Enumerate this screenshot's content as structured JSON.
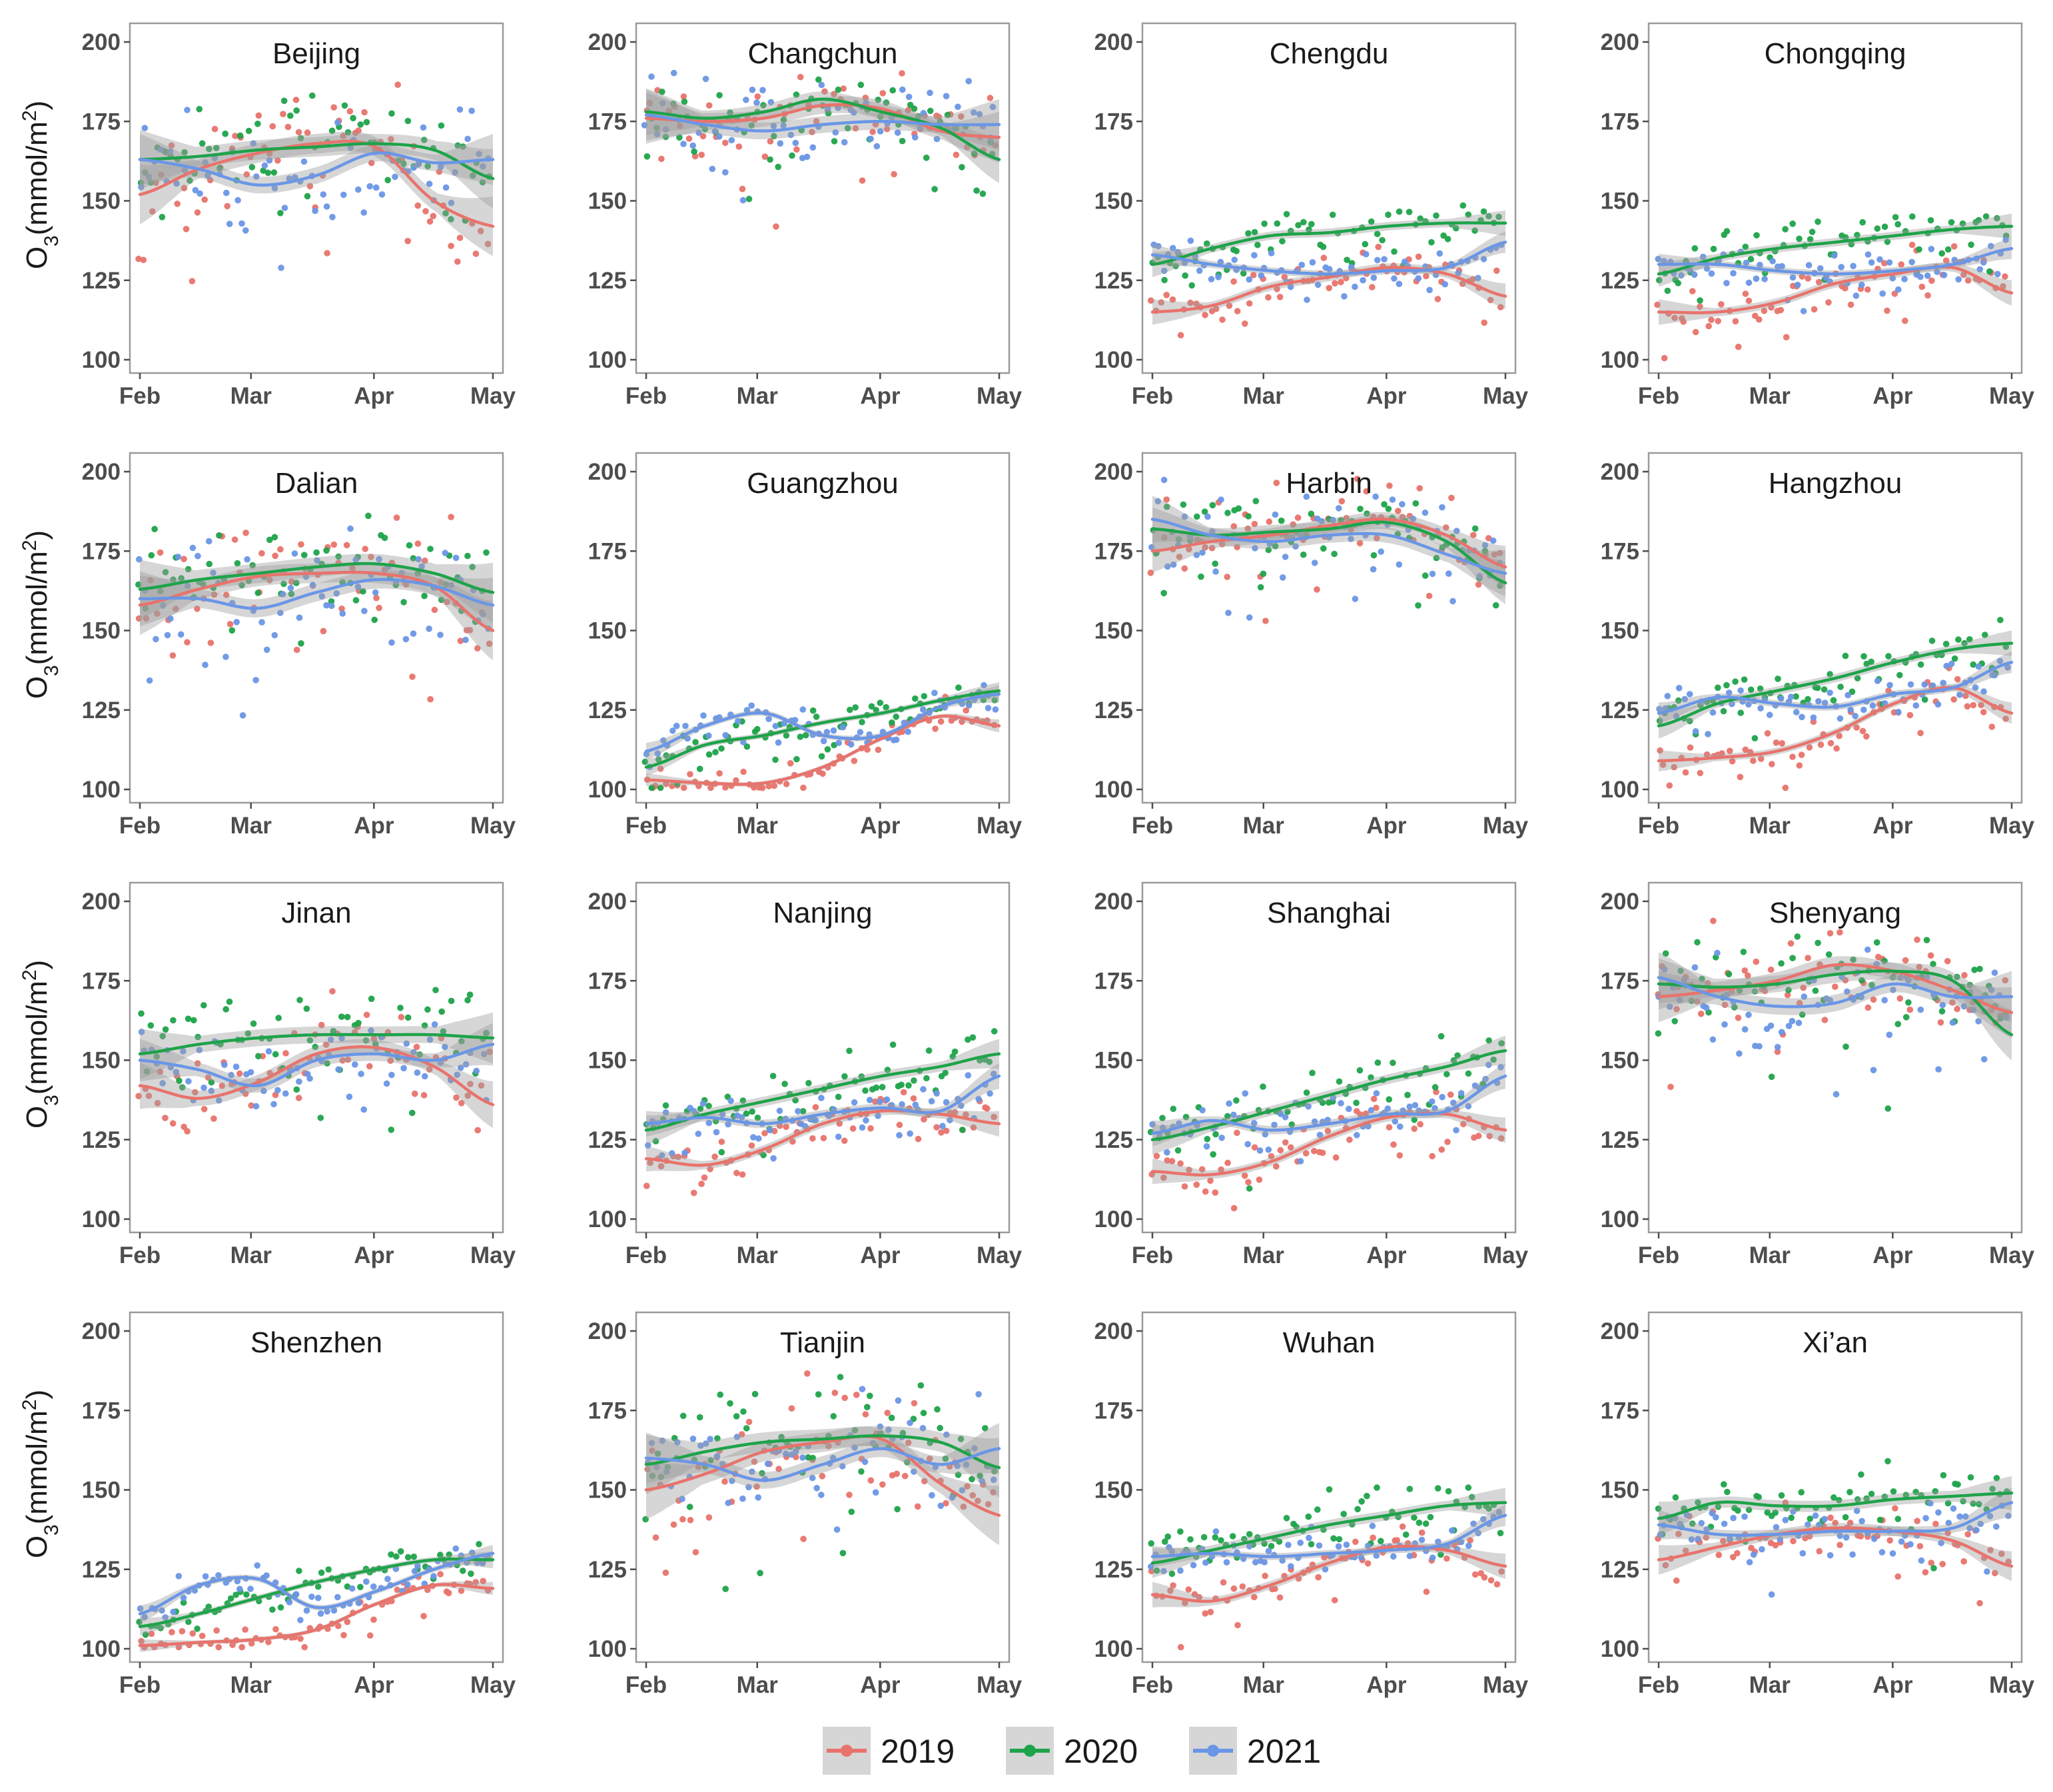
{
  "chart_data": {
    "type": "scatter",
    "layout": "faceted 4x4 small multiples",
    "ylabel": "O3(mmol/m2)",
    "ylim": [
      100,
      200
    ],
    "y_ticks": [
      100,
      125,
      150,
      175,
      200
    ],
    "x_ticks": [
      "Feb",
      "Mar",
      "Apr",
      "May"
    ],
    "x_domain_days": [
      0,
      89
    ],
    "x_tick_days": [
      0,
      28,
      59,
      89
    ],
    "series": [
      {
        "name": "2019",
        "color": "#E8736C"
      },
      {
        "name": "2020",
        "color": "#1EA34A"
      },
      {
        "name": "2021",
        "color": "#6A96E6"
      }
    ],
    "legend_position": "bottom",
    "panels": [
      {
        "city": "Beijing",
        "trend": {
          "2019": [
            152,
            160,
            165,
            168,
            167,
            150,
            142
          ],
          "2020": [
            163,
            164,
            166,
            167,
            168,
            166,
            157
          ],
          "2021": [
            163,
            160,
            155,
            158,
            165,
            162,
            163
          ]
        },
        "spread": {
          "2019": 14,
          "2020": 14,
          "2021": 12
        }
      },
      {
        "city": "Changchun",
        "trend": {
          "2019": [
            176,
            175,
            176,
            180,
            179,
            172,
            170
          ],
          "2020": [
            178,
            176,
            178,
            182,
            178,
            173,
            163
          ],
          "2021": [
            177,
            174,
            172,
            174,
            175,
            174,
            174
          ]
        },
        "spread": {
          "2019": 12,
          "2020": 11,
          "2021": 12
        }
      },
      {
        "city": "Chengdu",
        "trend": {
          "2019": [
            115,
            117,
            123,
            126,
            129,
            127,
            120
          ],
          "2020": [
            130,
            135,
            139,
            140,
            142,
            143,
            143
          ],
          "2021": [
            133,
            130,
            128,
            127,
            128,
            129,
            137
          ]
        },
        "spread": {
          "2019": 6,
          "2020": 6,
          "2021": 5
        }
      },
      {
        "city": "Chongqing",
        "trend": {
          "2019": [
            115,
            115,
            118,
            124,
            127,
            129,
            121
          ],
          "2020": [
            127,
            132,
            135,
            137,
            139,
            141,
            142
          ],
          "2021": [
            130,
            130,
            128,
            127,
            128,
            130,
            135
          ]
        },
        "spread": {
          "2019": 6,
          "2020": 6,
          "2021": 5
        }
      },
      {
        "city": "Dalian",
        "trend": {
          "2019": [
            158,
            163,
            167,
            168,
            168,
            164,
            150
          ],
          "2020": [
            163,
            166,
            168,
            170,
            171,
            168,
            162
          ],
          "2021": [
            160,
            160,
            157,
            162,
            166,
            164,
            158
          ]
        },
        "spread": {
          "2019": 14,
          "2020": 14,
          "2021": 13
        }
      },
      {
        "city": "Guangzhou",
        "trend": {
          "2019": [
            103,
            102,
            102,
            107,
            116,
            123,
            120
          ],
          "2020": [
            107,
            114,
            117,
            121,
            124,
            128,
            131
          ],
          "2021": [
            112,
            120,
            124,
            117,
            117,
            126,
            130
          ]
        },
        "spread": {
          "2019": 3,
          "2020": 4,
          "2021": 4
        }
      },
      {
        "city": "Harbin",
        "trend": {
          "2019": [
            175,
            178,
            180,
            183,
            185,
            180,
            170
          ],
          "2020": [
            182,
            180,
            181,
            182,
            184,
            178,
            165
          ],
          "2021": [
            185,
            180,
            178,
            180,
            180,
            174,
            168
          ]
        },
        "spread": {
          "2019": 10,
          "2020": 10,
          "2021": 11
        }
      },
      {
        "city": "Hangzhou",
        "trend": {
          "2019": [
            109,
            110,
            112,
            118,
            127,
            132,
            124
          ],
          "2020": [
            120,
            127,
            131,
            135,
            140,
            144,
            146
          ],
          "2021": [
            124,
            129,
            127,
            126,
            130,
            132,
            140
          ]
        },
        "spread": {
          "2019": 5,
          "2020": 6,
          "2021": 5
        }
      },
      {
        "city": "Jinan",
        "trend": {
          "2019": [
            142,
            138,
            143,
            152,
            154,
            148,
            136
          ],
          "2020": [
            152,
            155,
            157,
            158,
            158,
            158,
            157
          ],
          "2021": [
            150,
            147,
            142,
            150,
            152,
            150,
            155
          ]
        },
        "spread": {
          "2019": 11,
          "2020": 12,
          "2021": 10
        }
      },
      {
        "city": "Nanjing",
        "trend": {
          "2019": [
            119,
            117,
            122,
            130,
            134,
            133,
            130
          ],
          "2020": [
            128,
            133,
            137,
            141,
            145,
            148,
            152
          ],
          "2021": [
            130,
            132,
            130,
            133,
            135,
            134,
            145
          ]
        },
        "spread": {
          "2019": 6,
          "2020": 7,
          "2021": 6
        }
      },
      {
        "city": "Shanghai",
        "trend": {
          "2019": [
            115,
            114,
            118,
            126,
            132,
            133,
            128
          ],
          "2020": [
            125,
            129,
            134,
            139,
            144,
            148,
            153
          ],
          "2021": [
            127,
            131,
            128,
            130,
            133,
            134,
            145
          ]
        },
        "spread": {
          "2019": 6,
          "2020": 7,
          "2021": 6
        }
      },
      {
        "city": "Shenyang",
        "trend": {
          "2019": [
            170,
            172,
            175,
            180,
            178,
            172,
            165
          ],
          "2020": [
            174,
            173,
            174,
            177,
            178,
            175,
            158
          ],
          "2021": [
            176,
            170,
            167,
            168,
            174,
            170,
            170
          ]
        },
        "spread": {
          "2019": 12,
          "2020": 12,
          "2021": 12
        }
      },
      {
        "city": "Shenzhen",
        "trend": {
          "2019": [
            101,
            102,
            103,
            106,
            114,
            120,
            119
          ],
          "2020": [
            107,
            111,
            116,
            121,
            125,
            128,
            128
          ],
          "2021": [
            111,
            120,
            122,
            113,
            118,
            125,
            130
          ]
        },
        "spread": {
          "2019": 3,
          "2020": 4,
          "2021": 4
        }
      },
      {
        "city": "Tianjin",
        "trend": {
          "2019": [
            150,
            155,
            162,
            165,
            166,
            152,
            142
          ],
          "2020": [
            158,
            162,
            165,
            166,
            167,
            165,
            157
          ],
          "2021": [
            160,
            158,
            153,
            158,
            163,
            158,
            163
          ]
        },
        "spread": {
          "2019": 14,
          "2020": 14,
          "2021": 12
        }
      },
      {
        "city": "Wuhan",
        "trend": {
          "2019": [
            117,
            115,
            120,
            127,
            132,
            131,
            126
          ],
          "2020": [
            127,
            131,
            135,
            139,
            142,
            145,
            146
          ],
          "2021": [
            129,
            130,
            129,
            130,
            131,
            133,
            142
          ]
        },
        "spread": {
          "2019": 6,
          "2020": 7,
          "2021": 5
        }
      },
      {
        "city": "Xi’an",
        "trend": {
          "2019": [
            128,
            132,
            136,
            138,
            137,
            134,
            126
          ],
          "2020": [
            141,
            146,
            145,
            145,
            147,
            148,
            149
          ],
          "2021": [
            139,
            136,
            136,
            137,
            137,
            138,
            146
          ]
        },
        "spread": {
          "2019": 7,
          "2020": 8,
          "2021": 7
        }
      }
    ]
  }
}
